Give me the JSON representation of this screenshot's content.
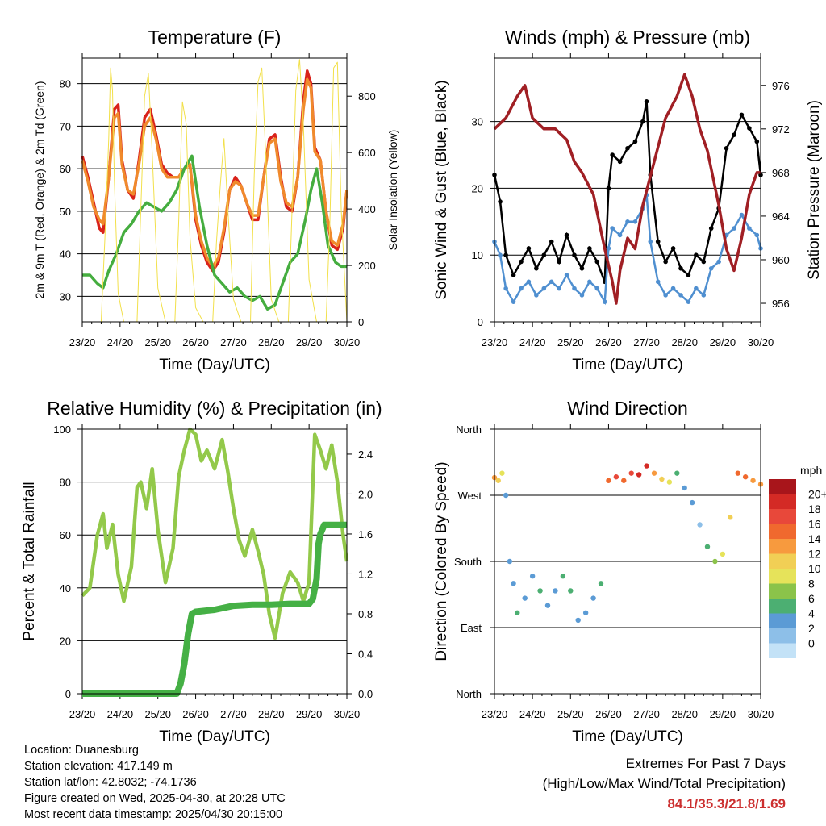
{
  "chart_data": [
    {
      "type": "line",
      "title": "Temperature (F)",
      "xlabel": "Time (Day/UTC)",
      "ylabel": "2m & 9m T (Red, Orange) & 2m Td (Green)",
      "y2label": "Solar Insolation (Yellow)",
      "x_ticks": [
        "23/20",
        "24/20",
        "25/20",
        "26/20",
        "27/20",
        "28/20",
        "29/20",
        "30/20"
      ],
      "xlim": [
        0,
        7
      ],
      "ylim": [
        24,
        86
      ],
      "y_ticks": [
        30,
        40,
        50,
        60,
        70,
        80
      ],
      "y2lim": [
        0,
        935
      ],
      "y2_ticks": [
        0,
        200,
        400,
        600,
        800
      ],
      "grid": true,
      "series": [
        {
          "color": "#d9221a",
          "x": [
            0,
            0.15,
            0.3,
            0.45,
            0.55,
            0.7,
            0.85,
            0.95,
            1.05,
            1.2,
            1.35,
            1.5,
            1.65,
            1.8,
            1.95,
            2.1,
            2.25,
            2.4,
            2.55,
            2.7,
            2.85,
            3.0,
            3.15,
            3.3,
            3.45,
            3.6,
            3.75,
            3.9,
            4.05,
            4.2,
            4.35,
            4.5,
            4.65,
            4.8,
            4.95,
            5.1,
            5.25,
            5.4,
            5.55,
            5.7,
            5.85,
            5.95,
            6.05,
            6.15,
            6.3,
            6.45,
            6.6,
            6.75,
            6.9,
            7.0
          ],
          "values": [
            63,
            58,
            52,
            46,
            45,
            58,
            74,
            75,
            62,
            55,
            53,
            62,
            72,
            74,
            68,
            61,
            59,
            58,
            58,
            60,
            61,
            48,
            42,
            38,
            36,
            38,
            45,
            55,
            58,
            56,
            52,
            48,
            48,
            58,
            67,
            68,
            58,
            51,
            50,
            58,
            76,
            83,
            80,
            65,
            62,
            50,
            42,
            41,
            46,
            55
          ]
        },
        {
          "color": "#f08a2c",
          "x": [
            0,
            0.15,
            0.3,
            0.45,
            0.55,
            0.7,
            0.85,
            0.95,
            1.05,
            1.2,
            1.35,
            1.5,
            1.65,
            1.8,
            1.95,
            2.1,
            2.25,
            2.4,
            2.55,
            2.7,
            2.85,
            3.0,
            3.15,
            3.3,
            3.45,
            3.6,
            3.75,
            3.9,
            4.05,
            4.2,
            4.35,
            4.5,
            4.65,
            4.8,
            4.95,
            5.1,
            5.25,
            5.4,
            5.55,
            5.7,
            5.85,
            5.95,
            6.05,
            6.15,
            6.3,
            6.45,
            6.6,
            6.75,
            6.9,
            7.0
          ],
          "values": [
            62,
            57,
            51,
            48,
            47,
            58,
            72,
            73,
            61,
            55,
            54,
            61,
            70,
            72,
            67,
            60,
            58,
            58,
            58,
            60,
            61,
            49,
            43,
            39,
            37,
            39,
            46,
            55,
            57,
            56,
            52,
            49,
            49,
            58,
            66,
            67,
            57,
            52,
            51,
            58,
            74,
            81,
            79,
            64,
            62,
            50,
            43,
            42,
            47,
            55
          ]
        },
        {
          "color": "#45ad3f",
          "x": [
            0,
            0.2,
            0.4,
            0.55,
            0.7,
            0.9,
            1.1,
            1.3,
            1.5,
            1.7,
            1.9,
            2.1,
            2.3,
            2.5,
            2.7,
            2.9,
            3.1,
            3.3,
            3.5,
            3.7,
            3.9,
            4.1,
            4.3,
            4.5,
            4.7,
            4.9,
            5.1,
            5.3,
            5.5,
            5.7,
            5.9,
            6.05,
            6.2,
            6.35,
            6.5,
            6.7,
            6.85,
            7.0
          ],
          "values": [
            35,
            35,
            33,
            32,
            36,
            40,
            45,
            47,
            50,
            52,
            51,
            50,
            52,
            55,
            60,
            63,
            51,
            42,
            35,
            33,
            31,
            32,
            30,
            29,
            30,
            27,
            28,
            33,
            38,
            40,
            48,
            55,
            60,
            52,
            42,
            38,
            37,
            37
          ]
        },
        {
          "color": "#f2e04a",
          "axis": "y2",
          "x": [
            0,
            0.25,
            0.5,
            0.6,
            0.7,
            0.75,
            0.8,
            0.85,
            0.95,
            1.1,
            1.25,
            1.45,
            1.55,
            1.65,
            1.75,
            1.85,
            2.0,
            2.2,
            2.45,
            2.55,
            2.65,
            2.75,
            2.85,
            3.0,
            3.2,
            3.45,
            3.55,
            3.65,
            3.75,
            3.85,
            4.0,
            4.2,
            4.45,
            4.55,
            4.65,
            4.75,
            4.85,
            5.0,
            5.2,
            5.45,
            5.55,
            5.65,
            5.75,
            5.85,
            6.0,
            6.2,
            6.45,
            6.55,
            6.65,
            6.75,
            6.85,
            7.0
          ],
          "values": [
            0,
            0,
            0,
            300,
            650,
            900,
            820,
            500,
            100,
            0,
            0,
            0,
            400,
            800,
            880,
            600,
            120,
            0,
            0,
            350,
            780,
            700,
            300,
            50,
            0,
            0,
            280,
            480,
            650,
            400,
            80,
            0,
            0,
            520,
            850,
            900,
            600,
            80,
            0,
            0,
            400,
            820,
            930,
            700,
            150,
            0,
            0,
            350,
            900,
            920,
            400,
            0
          ]
        }
      ]
    },
    {
      "type": "scatter",
      "title": "Winds (mph) & Pressure (mb)",
      "xlabel": "Time (Day/UTC)",
      "ylabel": "Sonic Wind & Gust (Blue, Black)",
      "y2label": "Station Pressure (Maroon)",
      "x_ticks": [
        "23/20",
        "24/20",
        "25/20",
        "26/20",
        "27/20",
        "28/20",
        "29/20",
        "30/20"
      ],
      "xlim": [
        0,
        7
      ],
      "ylim": [
        0,
        39.5
      ],
      "y_ticks": [
        0,
        10,
        20,
        30
      ],
      "y2lim": [
        954.3,
        978.5
      ],
      "y2_ticks": [
        956,
        960,
        964,
        968,
        972,
        976
      ],
      "grid": true,
      "series": [
        {
          "name": "Gust",
          "color": "#000000",
          "x": [
            0,
            0.15,
            0.3,
            0.5,
            0.7,
            0.9,
            1.1,
            1.3,
            1.5,
            1.7,
            1.9,
            2.1,
            2.3,
            2.5,
            2.7,
            2.9,
            3.0,
            3.1,
            3.3,
            3.5,
            3.7,
            3.9,
            4.0,
            4.1,
            4.3,
            4.5,
            4.7,
            4.9,
            5.1,
            5.3,
            5.5,
            5.7,
            5.9,
            6.1,
            6.3,
            6.5,
            6.7,
            6.9,
            7.0
          ],
          "values": [
            22,
            18,
            10,
            7,
            9,
            11,
            8,
            10,
            12,
            9,
            13,
            10,
            8,
            11,
            9,
            6,
            20,
            25,
            24,
            26,
            27,
            30,
            33,
            22,
            12,
            9,
            11,
            8,
            7,
            10,
            9,
            14,
            17,
            26,
            28,
            31,
            29,
            27,
            22
          ]
        },
        {
          "name": "Wind",
          "color": "#4f8fd0",
          "x": [
            0,
            0.15,
            0.3,
            0.5,
            0.7,
            0.9,
            1.1,
            1.3,
            1.5,
            1.7,
            1.9,
            2.1,
            2.3,
            2.5,
            2.7,
            2.9,
            3.0,
            3.1,
            3.3,
            3.5,
            3.7,
            3.9,
            4.0,
            4.1,
            4.3,
            4.5,
            4.7,
            4.9,
            5.1,
            5.3,
            5.5,
            5.7,
            5.9,
            6.1,
            6.3,
            6.5,
            6.7,
            6.9,
            7.0
          ],
          "values": [
            12,
            10,
            5,
            3,
            5,
            6,
            4,
            5,
            6,
            5,
            7,
            5,
            4,
            6,
            5,
            3,
            11,
            14,
            13,
            15,
            15,
            17,
            19,
            12,
            6,
            4,
            5,
            4,
            3,
            5,
            4,
            8,
            9,
            13,
            14,
            16,
            14,
            13,
            11
          ]
        },
        {
          "name": "Pressure",
          "color": "#a01f24",
          "axis": "y2",
          "x": [
            0,
            0.3,
            0.6,
            0.8,
            1.0,
            1.3,
            1.6,
            1.9,
            2.1,
            2.3,
            2.6,
            2.9,
            3.1,
            3.2,
            3.3,
            3.5,
            3.7,
            3.9,
            4.2,
            4.5,
            4.8,
            5.0,
            5.2,
            5.4,
            5.6,
            5.9,
            6.1,
            6.3,
            6.5,
            6.7,
            6.9,
            7.0
          ],
          "values": [
            972,
            973,
            975,
            976,
            973,
            972,
            972,
            971,
            969,
            968,
            966,
            961,
            958,
            956,
            959,
            962,
            961,
            965,
            969,
            973,
            975,
            977,
            975,
            972,
            970,
            965,
            961,
            959,
            962,
            966,
            968,
            968
          ]
        }
      ]
    },
    {
      "type": "line",
      "title": "Relative Humidity (%) & Precipitation (in)",
      "xlabel": "Time (Day/UTC)",
      "ylabel": "Percent & Total Rainfall",
      "x_ticks": [
        "23/20",
        "24/20",
        "25/20",
        "26/20",
        "27/20",
        "28/20",
        "29/20",
        "30/20"
      ],
      "xlim": [
        0,
        7
      ],
      "ylim": [
        0,
        100
      ],
      "y_ticks": [
        0,
        20,
        40,
        60,
        80,
        100
      ],
      "y2lim": [
        0,
        2.65
      ],
      "y2_ticks": [
        "0.0",
        "0.4",
        "0.8",
        "1.2",
        "1.6",
        "2.0",
        "2.4"
      ],
      "grid": true,
      "series": [
        {
          "name": "RH",
          "color": "#93c94a",
          "x": [
            0,
            0.2,
            0.4,
            0.55,
            0.65,
            0.8,
            0.95,
            1.1,
            1.3,
            1.45,
            1.55,
            1.7,
            1.85,
            2.0,
            2.2,
            2.4,
            2.55,
            2.7,
            2.85,
            3.0,
            3.15,
            3.3,
            3.5,
            3.7,
            3.85,
            4.0,
            4.15,
            4.3,
            4.5,
            4.65,
            4.8,
            4.95,
            5.1,
            5.3,
            5.5,
            5.7,
            5.85,
            6.0,
            6.15,
            6.3,
            6.45,
            6.6,
            6.75,
            6.9,
            7.0
          ],
          "values": [
            37,
            40,
            60,
            68,
            55,
            64,
            45,
            35,
            48,
            78,
            80,
            70,
            85,
            62,
            42,
            55,
            82,
            92,
            100,
            98,
            88,
            92,
            85,
            96,
            84,
            70,
            58,
            52,
            62,
            54,
            45,
            30,
            21,
            38,
            46,
            42,
            35,
            42,
            98,
            92,
            85,
            94,
            80,
            60,
            50
          ]
        },
        {
          "name": "Precip",
          "color": "#45b045",
          "axis": "y2",
          "x": [
            0,
            1.0,
            2.0,
            2.5,
            2.6,
            2.7,
            2.8,
            2.9,
            3.0,
            3.5,
            4.0,
            4.5,
            5.0,
            5.5,
            6.0,
            6.1,
            6.2,
            6.25,
            6.3,
            6.4,
            7.0
          ],
          "values": [
            0,
            0,
            0,
            0,
            0.1,
            0.3,
            0.6,
            0.8,
            0.82,
            0.84,
            0.88,
            0.89,
            0.89,
            0.9,
            0.9,
            0.95,
            1.15,
            1.5,
            1.6,
            1.69,
            1.69
          ]
        }
      ]
    },
    {
      "type": "scatter",
      "title": "Wind Direction",
      "xlabel": "Time (Day/UTC)",
      "ylabel": "Direction (Colored By Speed)",
      "x_ticks": [
        "23/20",
        "24/20",
        "25/20",
        "26/20",
        "27/20",
        "28/20",
        "29/20",
        "30/20"
      ],
      "xlim": [
        0,
        7
      ],
      "y_ticks": [
        "North",
        "West",
        "South",
        "East",
        "North"
      ],
      "ylim": [
        0,
        360
      ],
      "legend_title": "mph",
      "legend_labels": [
        "20+",
        "18",
        "16",
        "14",
        "12",
        "10",
        "8",
        "6",
        "4",
        "2",
        "0"
      ],
      "legend_colors": [
        "#a8151b",
        "#d42a25",
        "#e8483a",
        "#f0692e",
        "#f79a3e",
        "#f1cf55",
        "#e6e35a",
        "#8bc34a",
        "#4caf72",
        "#5b9bd5",
        "#8dbfe8",
        "#c3e2f7"
      ],
      "series": [
        {
          "name": "Direction",
          "x": [
            0,
            0.1,
            0.2,
            0.3,
            0.4,
            0.5,
            0.6,
            0.8,
            1.0,
            1.2,
            1.4,
            1.6,
            1.8,
            2.0,
            2.2,
            2.4,
            2.6,
            2.8,
            3.0,
            3.2,
            3.4,
            3.6,
            3.8,
            4.0,
            4.2,
            4.4,
            4.6,
            4.8,
            5.0,
            5.2,
            5.4,
            5.6,
            5.8,
            6.0,
            6.2,
            6.4,
            6.6,
            6.8,
            7.0
          ],
          "values": [
            294,
            290,
            300,
            270,
            180,
            150,
            110,
            130,
            160,
            140,
            120,
            140,
            160,
            140,
            100,
            110,
            130,
            150,
            290,
            295,
            290,
            300,
            298,
            310,
            300,
            292,
            288,
            300,
            280,
            260,
            230,
            200,
            180,
            190,
            240,
            300,
            295,
            290,
            285
          ],
          "speed": [
            14,
            12,
            10,
            4,
            3,
            4,
            5,
            3,
            4,
            5,
            3,
            4,
            6,
            5,
            4,
            3,
            4,
            5,
            16,
            18,
            15,
            17,
            19,
            20,
            14,
            12,
            10,
            6,
            4,
            3,
            2,
            5,
            8,
            10,
            12,
            16,
            15,
            14,
            13
          ]
        }
      ]
    }
  ],
  "info": {
    "location": "Location: Duanesburg",
    "elevation": "Station elevation: 417.149 m",
    "latlon": "Station lat/lon: 42.8032; -74.1736",
    "created": "Figure created on Wed, 2025-04-30, at 20:28 UTC",
    "recent": "Most recent data timestamp: 2025/04/30 20:15:00"
  },
  "extremes": {
    "line1": "Extremes For Past 7 Days",
    "line2": "(High/Low/Max Wind/Total Precipitation)",
    "values": "84.1/35.3/21.8/1.69",
    "value_color": "#cc2f2f"
  }
}
